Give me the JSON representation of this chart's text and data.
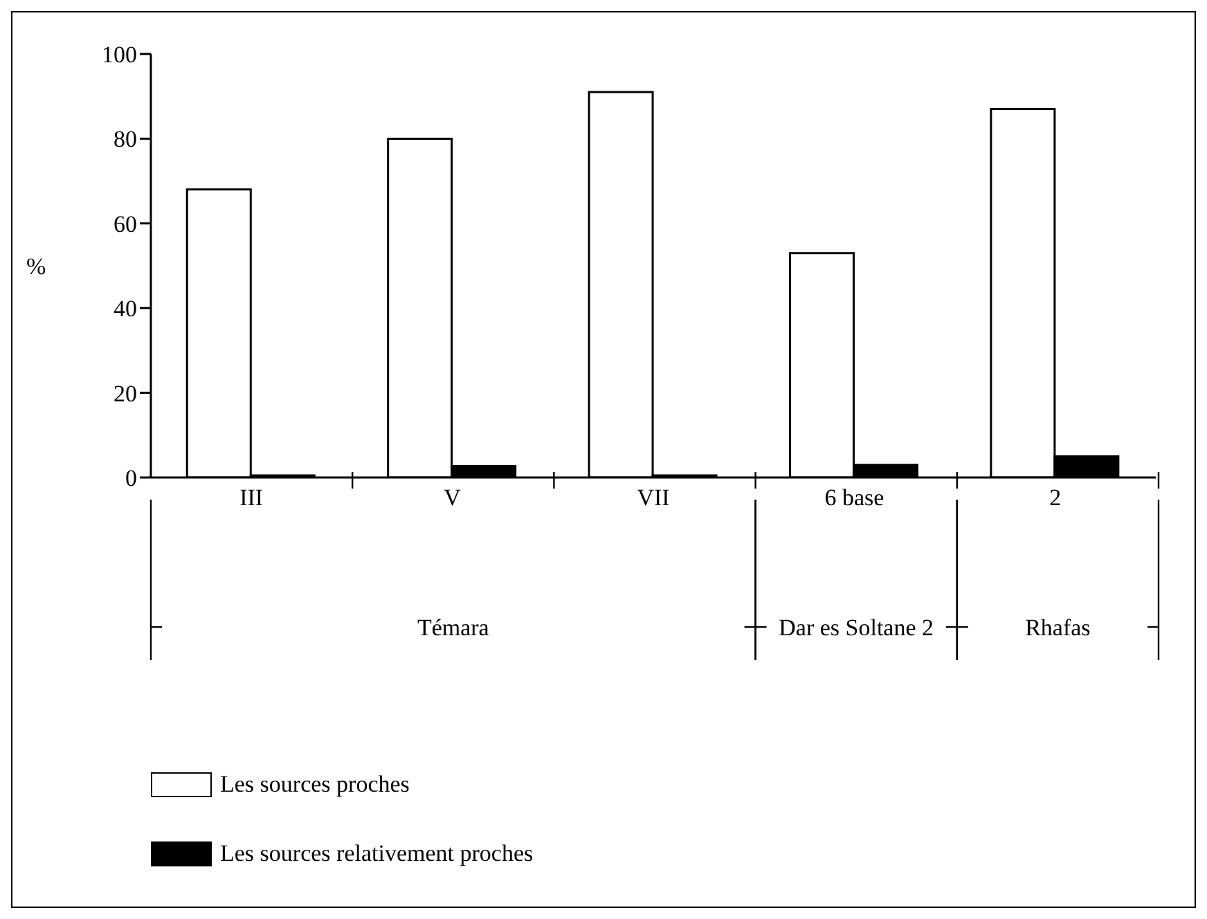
{
  "chart_data": {
    "type": "bar",
    "ylabel": "%",
    "categories": [
      "III",
      "V",
      "VII",
      "6 base",
      "2"
    ],
    "series": [
      {
        "name": "Les sources proches",
        "color": "#ffffff",
        "values": [
          68,
          80,
          91,
          53,
          87
        ]
      },
      {
        "name": "Les sources relativement proches",
        "color": "#000000",
        "values": [
          0.5,
          2.7,
          0.5,
          3,
          5
        ]
      }
    ],
    "ylim": [
      0,
      100
    ],
    "yticks": [
      0,
      20,
      40,
      60,
      80,
      100
    ],
    "grid": false,
    "legend": "bottom left",
    "annotations": [
      "Témara",
      "Dar es Soltane 2",
      "Rhafas"
    ]
  }
}
